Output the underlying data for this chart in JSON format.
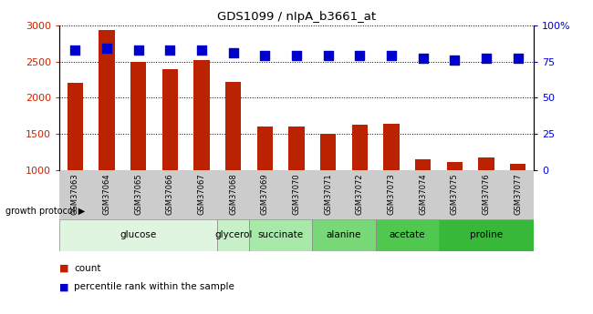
{
  "title": "GDS1099 / nIpA_b3661_at",
  "samples": [
    "GSM37063",
    "GSM37064",
    "GSM37065",
    "GSM37066",
    "GSM37067",
    "GSM37068",
    "GSM37069",
    "GSM37070",
    "GSM37071",
    "GSM37072",
    "GSM37073",
    "GSM37074",
    "GSM37075",
    "GSM37076",
    "GSM37077"
  ],
  "counts": [
    2200,
    2930,
    2500,
    2390,
    2520,
    2220,
    1610,
    1600,
    1510,
    1630,
    1640,
    1160,
    1120,
    1180,
    1090
  ],
  "percentiles": [
    83,
    84,
    83,
    83,
    83,
    81,
    79,
    79,
    79,
    79,
    79,
    77,
    76,
    77,
    77
  ],
  "ylim_left": [
    1000,
    3000
  ],
  "ylim_right": [
    0,
    100
  ],
  "yticks_left": [
    1000,
    1500,
    2000,
    2500,
    3000
  ],
  "yticks_right": [
    0,
    25,
    50,
    75,
    100
  ],
  "yticklabels_right": [
    "0",
    "25",
    "50",
    "75",
    "100%"
  ],
  "bar_color": "#bb2200",
  "dot_color": "#0000cc",
  "bar_baseline": 1000,
  "groups": [
    {
      "label": "glucose",
      "start": 0,
      "end": 4,
      "color": "#e0f5e0"
    },
    {
      "label": "glycerol",
      "start": 5,
      "end": 5,
      "color": "#c8f0c8"
    },
    {
      "label": "succinate",
      "start": 6,
      "end": 7,
      "color": "#a8e8a8"
    },
    {
      "label": "alanine",
      "start": 8,
      "end": 9,
      "color": "#78d878"
    },
    {
      "label": "acetate",
      "start": 10,
      "end": 11,
      "color": "#50c850"
    },
    {
      "label": "proline",
      "start": 12,
      "end": 14,
      "color": "#38b838"
    }
  ],
  "tick_label_color_left": "#cc2200",
  "tick_label_color_right": "#0000cc",
  "legend_count_color": "#bb2200",
  "legend_pct_color": "#0000cc",
  "growth_protocol_text": "growth protocol",
  "background_color": "#ffffff",
  "xtick_bg_color": "#cccccc",
  "dotsize": 45
}
